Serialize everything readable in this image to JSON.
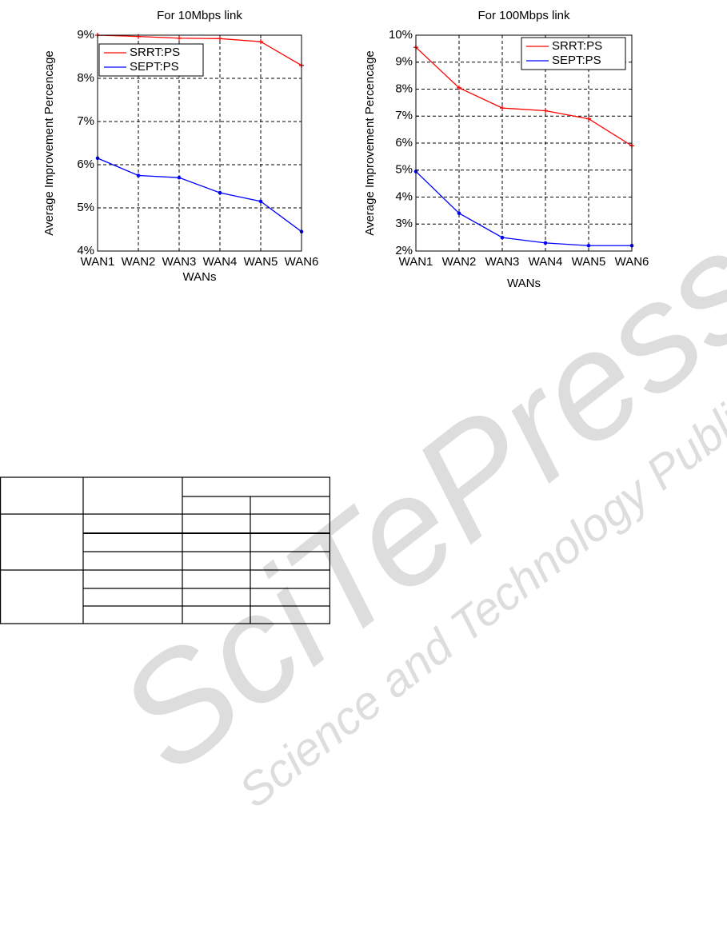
{
  "chart_data": [
    {
      "type": "line",
      "title": "For 10Mbps link",
      "xlabel": "WANs",
      "ylabel": "Average Improvement Percencage",
      "categories": [
        "WAN1",
        "WAN2",
        "WAN3",
        "WAN4",
        "WAN5",
        "WAN6"
      ],
      "series": [
        {
          "name": "SRRT:PS",
          "color": "#ff0000",
          "marker": "plus",
          "values": [
            9.0,
            8.97,
            8.93,
            8.92,
            8.85,
            8.3
          ]
        },
        {
          "name": "SEPT:PS",
          "color": "#0000ff",
          "marker": "dot",
          "values": [
            6.15,
            5.75,
            5.7,
            5.35,
            5.15,
            4.45
          ]
        }
      ],
      "ylim": [
        4,
        9
      ],
      "yticks": [
        {
          "value": 4,
          "label": "4%"
        },
        {
          "value": 5,
          "label": "5%"
        },
        {
          "value": 6,
          "label": "6%"
        },
        {
          "value": 7,
          "label": "7%"
        },
        {
          "value": 8,
          "label": "8%"
        },
        {
          "value": 9,
          "label": "9%"
        }
      ],
      "grid": true,
      "legend": "upper left"
    },
    {
      "type": "line",
      "title": "For 100Mbps link",
      "xlabel": "WANs",
      "ylabel": "Average Improvement Percencage",
      "categories": [
        "WAN1",
        "WAN2",
        "WAN3",
        "WAN4",
        "WAN5",
        "WAN6"
      ],
      "series": [
        {
          "name": "SRRT:PS",
          "color": "#ff0000",
          "marker": "plus",
          "values": [
            9.55,
            8.05,
            7.3,
            7.2,
            6.9,
            5.9
          ]
        },
        {
          "name": "SEPT:PS",
          "color": "#0000ff",
          "marker": "dot",
          "values": [
            4.95,
            3.4,
            2.5,
            2.3,
            2.2,
            2.2
          ]
        }
      ],
      "ylim": [
        2,
        10
      ],
      "yticks": [
        {
          "value": 2,
          "label": "2%"
        },
        {
          "value": 3,
          "label": "3%"
        },
        {
          "value": 4,
          "label": "4%"
        },
        {
          "value": 5,
          "label": "5%"
        },
        {
          "value": 6,
          "label": "6%"
        },
        {
          "value": 7,
          "label": "7%"
        },
        {
          "value": 8,
          "label": "8%"
        },
        {
          "value": 9,
          "label": "9%"
        },
        {
          "value": 10,
          "label": "10%"
        }
      ],
      "grid": true,
      "legend": "upper right"
    }
  ],
  "watermark": {
    "title": "SciTePress",
    "subtitle": "Science and Technology Publications"
  }
}
